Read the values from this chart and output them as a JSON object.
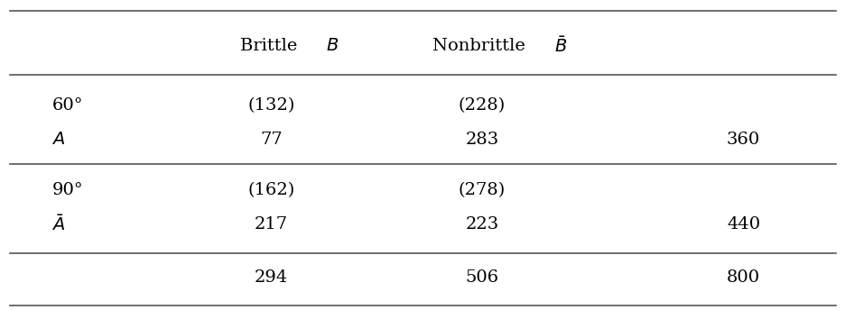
{
  "col_header_row1_brittle": "Brittle ",
  "col_header_row1_brittle_italic": "B",
  "col_header_row1_nonbrittle": "Nonbrittle ",
  "col_header_row1_nonbrittle_italic": "$\\bar{B}$",
  "rows": [
    {
      "label_line1": "60°",
      "label_line2": "$A$",
      "brittle_line1": "(132)",
      "nonbrittle_line1": "(228)",
      "brittle_line2": "77",
      "nonbrittle_line2": "283",
      "total": "360"
    },
    {
      "label_line1": "90°",
      "label_line2": "$\\bar{A}$",
      "brittle_line1": "(162)",
      "nonbrittle_line1": "(278)",
      "brittle_line2": "217",
      "nonbrittle_line2": "223",
      "total": "440"
    }
  ],
  "footer": {
    "brittle": "294",
    "nonbrittle": "506",
    "total": "800"
  },
  "col_positions": {
    "label": 0.06,
    "brittle": 0.32,
    "nonbrittle": 0.57,
    "total": 0.88
  },
  "background_color": "#ffffff",
  "text_color": "#000000",
  "line_color": "#555555",
  "fontsize": 14,
  "header_fontsize": 14
}
